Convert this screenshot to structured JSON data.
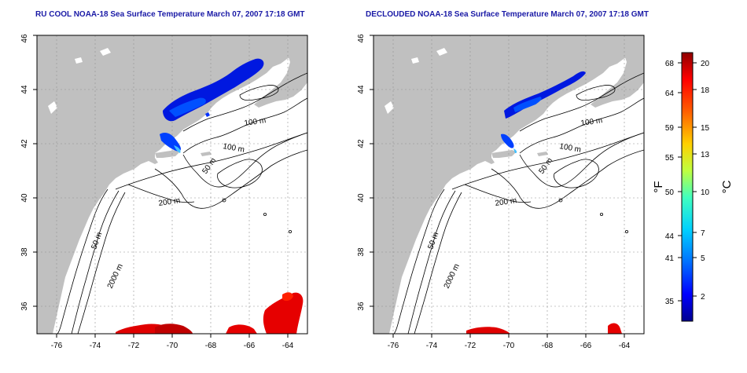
{
  "titles": {
    "left": "RU COOL NOAA-18 Sea Surface Temperature March 07, 2007 17:18 GMT",
    "right": "DECLOUDED NOAA-18 Sea Surface Temperature March 07, 2007 17:18 GMT"
  },
  "maps": {
    "lon_range": [
      -77,
      -63
    ],
    "lat_range": [
      35,
      46
    ],
    "x_ticks": [
      "-76",
      "-74",
      "-72",
      "-70",
      "-68",
      "-66",
      "-64"
    ],
    "y_ticks": [
      "36",
      "38",
      "40",
      "42",
      "44",
      "46"
    ],
    "contour_labels": [
      "100 m",
      "100 m",
      "50 m",
      "200 m",
      "50 m",
      "2000 m"
    ],
    "land_color": "#c0c0c0",
    "ocean_color": "#ffffff",
    "grid": "dotted"
  },
  "colorbar": {
    "fahrenheit_label": "°F",
    "celsius_label": "°C",
    "fahrenheit_ticks": [
      "68",
      "64",
      "59",
      "55",
      "50",
      "44",
      "41",
      "35"
    ],
    "celsius_ticks": [
      "20",
      "18",
      "15",
      "13",
      "10",
      "7",
      "5",
      "2"
    ],
    "colors": [
      "#00008f",
      "#0000ff",
      "#0070ff",
      "#00d0ff",
      "#40ffbf",
      "#bfff40",
      "#ffd000",
      "#ff6000",
      "#ff0000",
      "#8f0000"
    ]
  }
}
